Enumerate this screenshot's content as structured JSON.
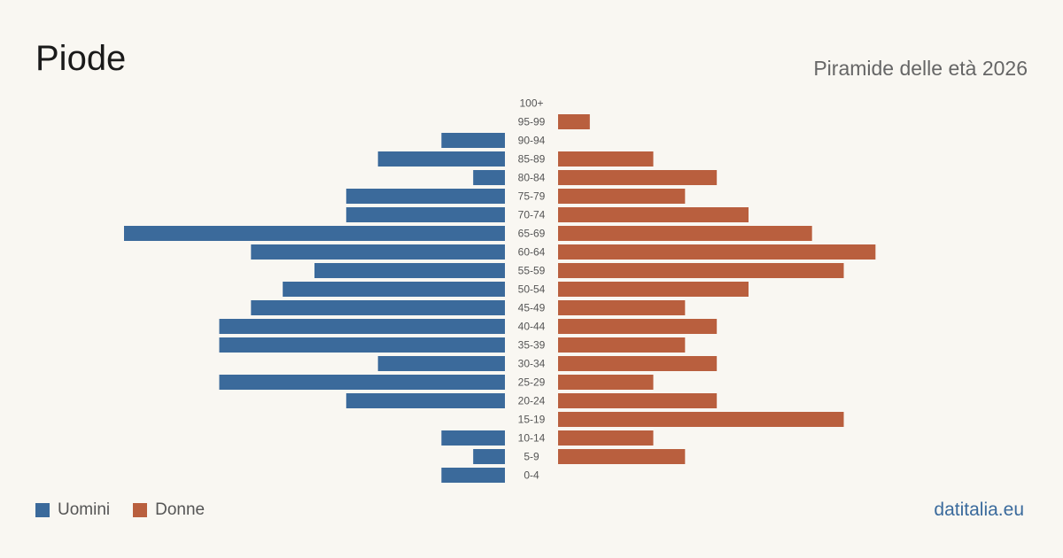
{
  "header": {
    "title": "Piode",
    "subtitle": "Piramide delle età 2026"
  },
  "footer": {
    "source": "datitalia.eu"
  },
  "colors": {
    "male": "#3b6a9b",
    "female": "#b95f3e",
    "background": "#f9f7f2"
  },
  "legend": {
    "position": "bottom-left",
    "items": [
      {
        "label": "Uomini",
        "color": "#3b6a9b"
      },
      {
        "label": "Donne",
        "color": "#b95f3e"
      }
    ]
  },
  "chart_data": {
    "type": "bar",
    "orientation": "horizontal-diverging",
    "title": "Piode",
    "subtitle": "Piramide delle età 2026",
    "categories": [
      "100+",
      "95-99",
      "90-94",
      "85-89",
      "80-84",
      "75-79",
      "70-74",
      "65-69",
      "60-64",
      "55-59",
      "50-54",
      "45-49",
      "40-44",
      "35-39",
      "30-34",
      "25-29",
      "20-24",
      "15-19",
      "10-14",
      "5-9",
      "0-4"
    ],
    "series": [
      {
        "name": "Uomini",
        "side": "left",
        "color": "#3b6a9b",
        "values": [
          0,
          0,
          2,
          4,
          1,
          5,
          5,
          12,
          8,
          6,
          7,
          8,
          9,
          9,
          4,
          9,
          5,
          0,
          2,
          1,
          2
        ]
      },
      {
        "name": "Donne",
        "side": "right",
        "color": "#b95f3e",
        "values": [
          0,
          1,
          0,
          3,
          5,
          4,
          6,
          8,
          10,
          9,
          6,
          4,
          5,
          4,
          5,
          3,
          5,
          9,
          3,
          4,
          0
        ]
      }
    ],
    "xlim": [
      0,
      12
    ],
    "grid": false
  }
}
